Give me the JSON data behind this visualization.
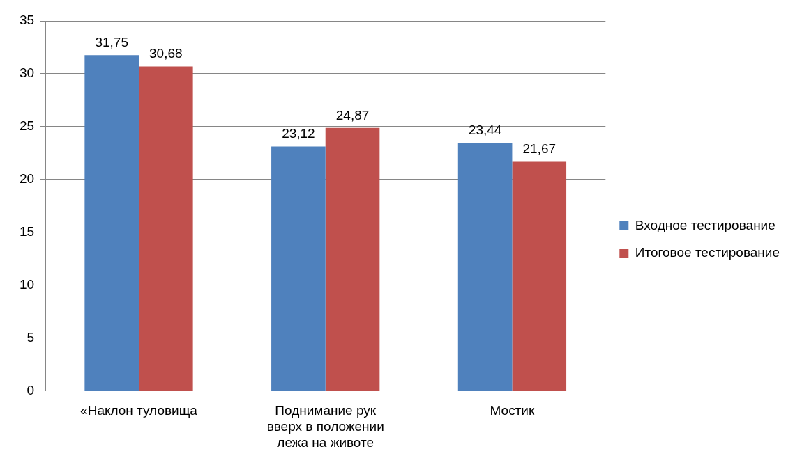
{
  "chart_data": {
    "type": "bar",
    "categories": [
      "«Наклон туловища",
      "Поднимание рук вверх в положении лежа на животе",
      "Мостик"
    ],
    "series": [
      {
        "name": "Входное тестирование",
        "color": "#4f81bd",
        "values": [
          31.75,
          23.12,
          23.44
        ],
        "value_labels": [
          "31,75",
          "23,12",
          "23,44"
        ]
      },
      {
        "name": "Итоговое тестирование",
        "color": "#c0504d",
        "values": [
          30.68,
          24.87,
          21.67
        ],
        "value_labels": [
          "30,68",
          "24,87",
          "21,67"
        ]
      }
    ],
    "ylim": [
      0,
      35
    ],
    "yticks": [
      0,
      5,
      10,
      15,
      20,
      25,
      30,
      35
    ],
    "grid": "y",
    "legend": "right"
  }
}
